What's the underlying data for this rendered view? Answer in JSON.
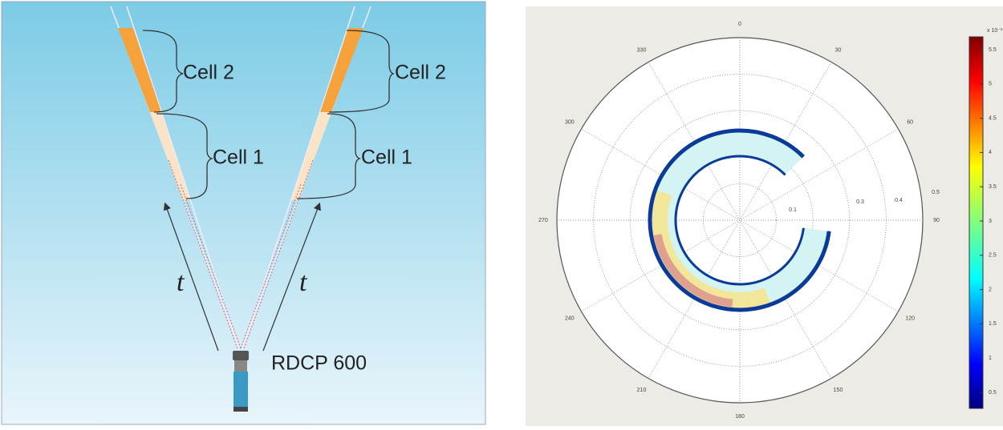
{
  "diagram": {
    "cell_2_left": "Cell 2",
    "cell_1_left": "Cell 1",
    "cell_2_right": "Cell 2",
    "cell_1_right": "Cell 1",
    "t_left": "t",
    "t_right": "t",
    "instrument": "RDCP 600"
  },
  "polar": {
    "angle_labels": [
      "0",
      "30",
      "60",
      "90",
      "120",
      "150",
      "180",
      "210",
      "240",
      "270",
      "300",
      "330"
    ],
    "radial_labels": [
      "0.1",
      "0.3",
      "0.4",
      "0.5"
    ],
    "colorbar_exponent": "x 10⁻³",
    "colorbar_labels": [
      "5.5",
      "5",
      "4.5",
      "4",
      "3.5",
      "3",
      "2.5",
      "2",
      "1.5",
      "1",
      "0.5"
    ]
  }
}
